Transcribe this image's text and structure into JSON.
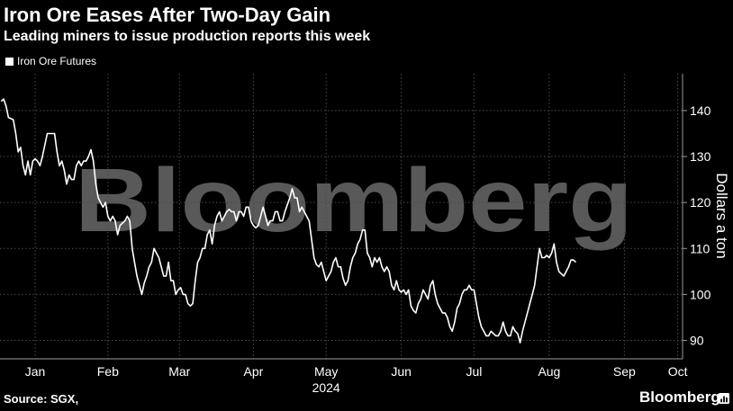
{
  "header": {
    "title": "Iron Ore Eases After Two-Day Gain",
    "subtitle": "Leading miners to issue production reports this week"
  },
  "legend": {
    "label": "Iron Ore Futures"
  },
  "footer": {
    "source": "Source: SGX,",
    "brand": "Bloomberg"
  },
  "watermark": "Bloomberg",
  "colors": {
    "background": "#000000",
    "line": "#ffffff",
    "grid": "#4a4a4a",
    "watermark": "#595959"
  },
  "chart_data": {
    "type": "line",
    "ylabel": "Dollars a ton",
    "ylim": [
      86,
      148
    ],
    "yticks": [
      90,
      100,
      110,
      120,
      130,
      140
    ],
    "xlabel": "2024",
    "xlim": [
      1.5,
      283
    ],
    "x_unit": "day of year 2024",
    "x_ticks": [
      {
        "label": "Jan",
        "pos": 16
      },
      {
        "label": "Feb",
        "pos": 46
      },
      {
        "label": "Mar",
        "pos": 75.5
      },
      {
        "label": "Apr",
        "pos": 106
      },
      {
        "label": "May",
        "pos": 136
      },
      {
        "label": "Jun",
        "pos": 167
      },
      {
        "label": "Jul",
        "pos": 197
      },
      {
        "label": "Aug",
        "pos": 228
      },
      {
        "label": "Sep",
        "pos": 259
      },
      {
        "label": "Oct",
        "pos": 281
      }
    ],
    "grid": true,
    "legend_position": "top-left",
    "series": [
      {
        "name": "Iron Ore Futures",
        "points": [
          [
            2,
            142
          ],
          [
            3,
            142.5
          ],
          [
            4,
            141
          ],
          [
            5,
            138.5
          ],
          [
            7,
            138
          ],
          [
            8,
            135
          ],
          [
            9,
            131
          ],
          [
            10,
            132
          ],
          [
            11,
            128
          ],
          [
            12,
            126
          ],
          [
            13,
            129
          ],
          [
            14,
            126
          ],
          [
            15,
            129
          ],
          [
            16,
            129.5
          ],
          [
            17,
            129
          ],
          [
            18,
            128
          ],
          [
            19,
            130
          ],
          [
            21,
            135
          ],
          [
            23,
            135
          ],
          [
            24,
            135
          ],
          [
            25,
            131
          ],
          [
            26,
            128
          ],
          [
            27,
            129
          ],
          [
            28,
            127
          ],
          [
            29,
            124
          ],
          [
            30,
            126
          ],
          [
            31,
            125
          ],
          [
            32,
            125
          ],
          [
            33,
            128
          ],
          [
            34,
            129
          ],
          [
            35,
            128
          ],
          [
            36,
            129
          ],
          [
            37,
            129
          ],
          [
            38,
            130
          ],
          [
            39,
            131.5
          ],
          [
            40,
            129
          ],
          [
            41,
            124
          ],
          [
            42,
            121
          ],
          [
            43,
            120
          ],
          [
            44,
            119
          ],
          [
            45,
            120
          ],
          [
            46,
            117
          ],
          [
            47,
            116
          ],
          [
            48,
            117
          ],
          [
            49,
            116
          ],
          [
            50,
            113
          ],
          [
            51,
            115
          ],
          [
            53,
            116
          ],
          [
            54,
            117
          ],
          [
            55,
            116
          ],
          [
            56,
            110
          ],
          [
            57,
            107
          ],
          [
            58,
            104
          ],
          [
            60,
            100
          ],
          [
            61,
            102.5
          ],
          [
            62,
            104
          ],
          [
            63,
            106
          ],
          [
            64,
            107
          ],
          [
            65,
            110
          ],
          [
            66,
            109
          ],
          [
            67,
            108
          ],
          [
            68,
            106
          ],
          [
            69,
            104
          ],
          [
            70,
            104
          ],
          [
            71,
            107
          ],
          [
            72,
            103
          ],
          [
            73,
            103
          ],
          [
            74,
            100
          ],
          [
            75,
            101
          ],
          [
            76,
            101.5
          ],
          [
            77,
            100
          ],
          [
            78,
            100
          ],
          [
            79,
            98
          ],
          [
            80,
            97.5
          ],
          [
            81,
            98
          ],
          [
            82,
            103
          ],
          [
            83,
            107
          ],
          [
            84,
            108
          ],
          [
            85,
            110
          ],
          [
            86,
            110
          ],
          [
            87,
            113
          ],
          [
            88,
            114
          ],
          [
            89,
            111
          ],
          [
            90,
            115
          ],
          [
            91,
            117
          ],
          [
            92,
            118
          ],
          [
            93,
            116
          ],
          [
            94,
            117
          ],
          [
            95,
            118
          ],
          [
            96,
            118.5
          ],
          [
            97,
            118
          ],
          [
            98,
            118
          ],
          [
            99,
            116
          ],
          [
            100,
            118
          ],
          [
            101,
            118
          ],
          [
            102,
            117
          ],
          [
            103,
            119
          ],
          [
            104,
            119
          ],
          [
            105,
            116
          ],
          [
            106,
            115
          ],
          [
            107,
            114.5
          ],
          [
            108,
            115
          ],
          [
            109,
            117
          ],
          [
            110,
            119
          ],
          [
            111,
            117
          ],
          [
            112,
            115
          ],
          [
            113,
            116
          ],
          [
            114,
            116
          ],
          [
            115,
            118
          ],
          [
            116,
            118
          ],
          [
            117,
            116
          ],
          [
            118,
            116
          ],
          [
            119,
            118
          ],
          [
            120,
            119.5
          ],
          [
            121,
            121
          ],
          [
            122,
            123
          ],
          [
            123,
            121
          ],
          [
            124,
            121
          ],
          [
            125,
            118
          ],
          [
            126,
            119
          ],
          [
            127,
            118
          ],
          [
            128,
            117
          ],
          [
            129,
            116
          ],
          [
            130,
            112
          ],
          [
            131,
            108
          ],
          [
            132,
            106.5
          ],
          [
            133,
            106
          ],
          [
            134,
            107
          ],
          [
            135,
            105
          ],
          [
            136,
            103
          ],
          [
            137,
            104
          ],
          [
            138,
            105
          ],
          [
            139,
            107
          ],
          [
            140,
            108
          ],
          [
            141,
            106
          ],
          [
            142,
            106
          ],
          [
            143,
            103.5
          ],
          [
            144,
            102
          ],
          [
            145,
            103
          ],
          [
            146,
            106
          ],
          [
            147,
            108
          ],
          [
            148,
            109
          ],
          [
            149,
            111
          ],
          [
            150,
            112
          ],
          [
            151,
            114
          ],
          [
            152,
            114
          ],
          [
            153,
            109
          ],
          [
            154,
            108
          ],
          [
            155,
            106
          ],
          [
            156,
            108
          ],
          [
            157,
            107
          ],
          [
            158,
            108
          ],
          [
            159,
            106
          ],
          [
            160,
            105
          ],
          [
            161,
            106
          ],
          [
            162,
            105
          ],
          [
            163,
            102
          ],
          [
            164,
            101
          ],
          [
            165,
            103
          ],
          [
            166,
            101
          ],
          [
            167,
            100.5
          ],
          [
            168,
            101
          ],
          [
            169,
            100
          ],
          [
            170,
            101
          ],
          [
            171,
            97.5
          ],
          [
            172,
            96.5
          ],
          [
            173,
            96
          ],
          [
            174,
            98
          ],
          [
            175,
            99
          ],
          [
            176,
            101
          ],
          [
            177,
            100
          ],
          [
            178,
            99
          ],
          [
            179,
            102
          ],
          [
            180,
            103
          ],
          [
            181,
            100
          ],
          [
            182,
            98
          ],
          [
            183,
            97
          ],
          [
            184,
            96
          ],
          [
            185,
            96
          ],
          [
            186,
            95
          ],
          [
            187,
            93
          ],
          [
            188,
            92
          ],
          [
            189,
            94
          ],
          [
            190,
            97
          ],
          [
            191,
            98
          ],
          [
            192,
            100
          ],
          [
            193,
            101
          ],
          [
            194,
            101
          ],
          [
            195,
            102
          ],
          [
            196,
            101
          ],
          [
            197,
            101
          ],
          [
            198,
            98
          ],
          [
            199,
            95
          ],
          [
            200,
            93
          ],
          [
            201,
            92
          ],
          [
            202,
            91
          ],
          [
            203,
            91
          ],
          [
            204,
            92
          ],
          [
            205,
            91.5
          ],
          [
            206,
            91
          ],
          [
            207,
            91
          ],
          [
            208,
            92
          ],
          [
            209,
            94
          ],
          [
            210,
            92
          ],
          [
            211,
            91
          ],
          [
            212,
            91
          ],
          [
            213,
            93
          ],
          [
            214,
            92
          ],
          [
            215,
            91.5
          ],
          [
            216,
            89.5
          ],
          [
            217,
            92
          ],
          [
            218,
            94
          ],
          [
            219,
            96
          ],
          [
            220,
            98
          ],
          [
            221,
            100
          ],
          [
            222,
            102
          ],
          [
            223,
            106
          ],
          [
            224,
            110
          ],
          [
            225,
            108
          ],
          [
            226,
            108
          ],
          [
            227,
            108.5
          ],
          [
            228,
            108
          ],
          [
            229,
            109
          ],
          [
            230,
            111
          ],
          [
            231,
            107
          ],
          [
            232,
            105
          ],
          [
            233,
            104.5
          ],
          [
            234,
            104
          ],
          [
            235,
            105
          ],
          [
            236,
            106
          ],
          [
            237,
            107.5
          ],
          [
            238,
            107.5
          ],
          [
            239,
            107
          ]
        ]
      }
    ]
  }
}
